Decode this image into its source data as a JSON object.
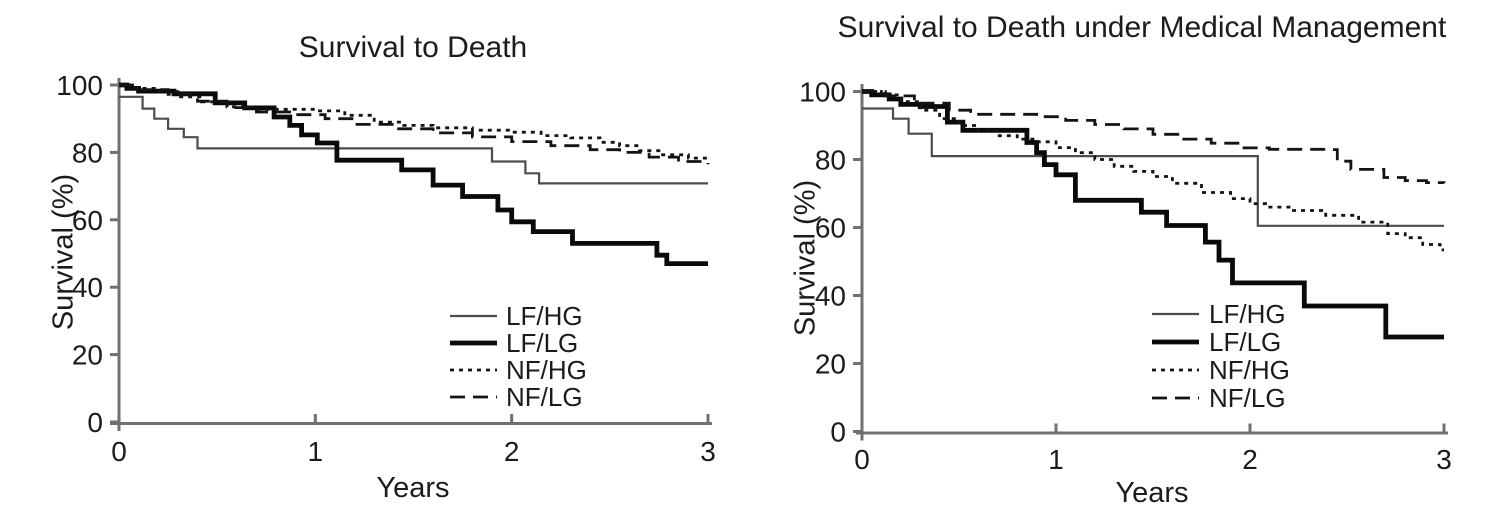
{
  "page": {
    "background": "#ffffff"
  },
  "chart_data": [
    {
      "type": "line",
      "step": true,
      "title": "Survival to Death",
      "xlabel": "Years",
      "ylabel": "Survival (%)",
      "xlim": [
        0,
        3
      ],
      "ylim": [
        0,
        100
      ],
      "xticks": [
        "0",
        "1",
        "2",
        "3"
      ],
      "yticks": [
        "0",
        "20",
        "40",
        "60",
        "80",
        "100"
      ],
      "grid": false,
      "legend_position": "lower right",
      "series": [
        {
          "name": "LF/HG",
          "style": "thin-solid",
          "color": "#4d4d4d",
          "points": [
            [
              0,
              96.5
            ],
            [
              0.12,
              93
            ],
            [
              0.18,
              90
            ],
            [
              0.25,
              87
            ],
            [
              0.33,
              84.5
            ],
            [
              0.4,
              81.2
            ],
            [
              1.9,
              77.3
            ],
            [
              2.07,
              73.8
            ],
            [
              2.14,
              70.8
            ],
            [
              3,
              70.8
            ]
          ]
        },
        {
          "name": "LF/LG",
          "style": "thick-solid",
          "color": "#0a0a0a",
          "points": [
            [
              0,
              100
            ],
            [
              0.04,
              99
            ],
            [
              0.1,
              98.2
            ],
            [
              0.28,
              97.4
            ],
            [
              0.49,
              94.7
            ],
            [
              0.64,
              93.2
            ],
            [
              0.79,
              90.5
            ],
            [
              0.87,
              88
            ],
            [
              0.93,
              85.2
            ],
            [
              1.01,
              82.8
            ],
            [
              1.11,
              77.7
            ],
            [
              1.44,
              74.8
            ],
            [
              1.6,
              70.3
            ],
            [
              1.75,
              66.9
            ],
            [
              1.93,
              62.9
            ],
            [
              2.0,
              59.4
            ],
            [
              2.11,
              56.5
            ],
            [
              2.31,
              53
            ],
            [
              2.74,
              49.5
            ],
            [
              2.79,
              47
            ],
            [
              3,
              47
            ]
          ]
        },
        {
          "name": "NF/HG",
          "style": "dotted",
          "color": "#141414",
          "points": [
            [
              0,
              100
            ],
            [
              0.08,
              99
            ],
            [
              0.18,
              98
            ],
            [
              0.3,
              96.5
            ],
            [
              0.42,
              95
            ],
            [
              0.55,
              93.5
            ],
            [
              0.7,
              92.8
            ],
            [
              1.0,
              92.3
            ],
            [
              1.15,
              91
            ],
            [
              1.3,
              89
            ],
            [
              1.45,
              88
            ],
            [
              1.6,
              87.3
            ],
            [
              1.8,
              86.6
            ],
            [
              2.0,
              86
            ],
            [
              2.15,
              85
            ],
            [
              2.3,
              84.3
            ],
            [
              2.45,
              83
            ],
            [
              2.55,
              82
            ],
            [
              2.65,
              80.5
            ],
            [
              2.75,
              79.3
            ],
            [
              2.9,
              78.3
            ],
            [
              3,
              77.8
            ]
          ]
        },
        {
          "name": "NF/LG",
          "style": "dashed",
          "color": "#141414",
          "points": [
            [
              0,
              100
            ],
            [
              0.1,
              98.6
            ],
            [
              0.25,
              97.2
            ],
            [
              0.4,
              95.2
            ],
            [
              0.55,
              93.3
            ],
            [
              0.7,
              92
            ],
            [
              0.9,
              91.2
            ],
            [
              1.05,
              90
            ],
            [
              1.2,
              88.3
            ],
            [
              1.4,
              87
            ],
            [
              1.6,
              85.8
            ],
            [
              1.8,
              84.6
            ],
            [
              2.0,
              83.2
            ],
            [
              2.2,
              82
            ],
            [
              2.4,
              80.8
            ],
            [
              2.55,
              80
            ],
            [
              2.7,
              78.6
            ],
            [
              2.85,
              77.3
            ],
            [
              3,
              76.5
            ]
          ]
        }
      ]
    },
    {
      "type": "line",
      "step": true,
      "title": "Survival to Death under Medical Management",
      "xlabel": "Years",
      "ylabel": "Survival (%)",
      "xlim": [
        0,
        3
      ],
      "ylim": [
        0,
        100
      ],
      "xticks": [
        "0",
        "1",
        "2",
        "3"
      ],
      "yticks": [
        "0",
        "20",
        "40",
        "60",
        "80",
        "100"
      ],
      "grid": false,
      "legend_position": "lower right",
      "series": [
        {
          "name": "LF/HG",
          "style": "thin-solid",
          "color": "#4d4d4d",
          "points": [
            [
              0,
              95
            ],
            [
              0.16,
              92
            ],
            [
              0.24,
              87.6
            ],
            [
              0.36,
              81
            ],
            [
              2.04,
              60.5
            ],
            [
              3,
              60.5
            ]
          ]
        },
        {
          "name": "LF/LG",
          "style": "thick-solid",
          "color": "#0a0a0a",
          "points": [
            [
              0,
              100
            ],
            [
              0.05,
              99
            ],
            [
              0.14,
              97.8
            ],
            [
              0.2,
              96.2
            ],
            [
              0.3,
              95.6
            ],
            [
              0.44,
              91
            ],
            [
              0.52,
              88.6
            ],
            [
              0.85,
              85
            ],
            [
              0.9,
              82
            ],
            [
              0.94,
              78.5
            ],
            [
              1.0,
              75.5
            ],
            [
              1.1,
              68
            ],
            [
              1.44,
              64.5
            ],
            [
              1.57,
              60.6
            ],
            [
              1.77,
              55.7
            ],
            [
              1.84,
              50.4
            ],
            [
              1.91,
              43.7
            ],
            [
              2.28,
              36.9
            ],
            [
              2.7,
              27.8
            ],
            [
              3,
              27.8
            ]
          ]
        },
        {
          "name": "NF/HG",
          "style": "dotted",
          "color": "#141414",
          "points": [
            [
              0,
              100
            ],
            [
              0.1,
              99
            ],
            [
              0.2,
              97
            ],
            [
              0.3,
              94.5
            ],
            [
              0.4,
              92
            ],
            [
              0.5,
              90
            ],
            [
              0.6,
              88.5
            ],
            [
              0.7,
              87
            ],
            [
              0.8,
              86
            ],
            [
              0.9,
              85.2
            ],
            [
              1.0,
              83.5
            ],
            [
              1.1,
              82
            ],
            [
              1.2,
              80
            ],
            [
              1.3,
              78
            ],
            [
              1.4,
              76.5
            ],
            [
              1.5,
              75
            ],
            [
              1.6,
              73
            ],
            [
              1.75,
              70.3
            ],
            [
              1.9,
              68.5
            ],
            [
              2.0,
              67
            ],
            [
              2.08,
              66
            ],
            [
              2.21,
              65
            ],
            [
              2.39,
              63.6
            ],
            [
              2.56,
              61.6
            ],
            [
              2.71,
              58.2
            ],
            [
              2.8,
              57
            ],
            [
              2.89,
              55
            ],
            [
              2.98,
              53.4
            ]
          ]
        },
        {
          "name": "NF/LG",
          "style": "dashed",
          "color": "#141414",
          "points": [
            [
              0,
              100
            ],
            [
              0.12,
              98.7
            ],
            [
              0.27,
              96.6
            ],
            [
              0.45,
              94.5
            ],
            [
              0.56,
              93.3
            ],
            [
              0.9,
              92.6
            ],
            [
              1.05,
              91.5
            ],
            [
              1.2,
              90.3
            ],
            [
              1.35,
              89
            ],
            [
              1.5,
              87.4
            ],
            [
              1.65,
              86
            ],
            [
              1.8,
              84.8
            ],
            [
              1.95,
              83.4
            ],
            [
              2.1,
              83
            ],
            [
              2.41,
              82.9
            ],
            [
              2.45,
              79.5
            ],
            [
              2.52,
              77.1
            ],
            [
              2.69,
              74.7
            ],
            [
              2.8,
              73.8
            ],
            [
              2.91,
              73.2
            ],
            [
              3,
              73
            ]
          ]
        }
      ]
    }
  ]
}
